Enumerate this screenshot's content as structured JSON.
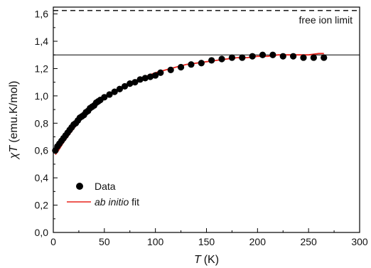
{
  "chart_data": {
    "type": "scatter",
    "xlabel_symbol": "T",
    "xlabel_unit": "(K)",
    "ylabel_symbol": "χT",
    "ylabel_unit": "(emu.K/mol)",
    "xlim": [
      0,
      300
    ],
    "ylim": [
      0.0,
      1.65
    ],
    "x_ticks": [
      0,
      50,
      100,
      150,
      200,
      250,
      300
    ],
    "y_ticks": [
      0.0,
      0.2,
      0.4,
      0.6,
      0.8,
      1.0,
      1.2,
      1.4,
      1.6
    ],
    "x_tick_labels": [
      "0",
      "50",
      "100",
      "150",
      "200",
      "250",
      "300"
    ],
    "y_tick_labels": [
      "0,0",
      "0,2",
      "0,4",
      "0,6",
      "0,8",
      "1,0",
      "1,2",
      "1,4",
      "1,6"
    ],
    "grid": false,
    "legend_position": "bottom-left",
    "legend": {
      "data_label": "Data",
      "fit_label_italic": "ab initio",
      "fit_label_rest": " fit"
    },
    "reference_lines": {
      "free_ion_limit": {
        "y": 1.625,
        "style": "dashed",
        "label": "free ion limit"
      },
      "saturation": {
        "y": 1.3,
        "style": "solid"
      }
    },
    "data_series": {
      "name": "Data",
      "color": "#000000",
      "x": [
        2,
        4,
        6,
        8,
        10,
        12,
        14,
        16,
        18,
        20,
        22,
        24,
        26,
        28,
        30,
        32,
        34,
        36,
        38,
        40,
        42,
        44,
        46,
        50,
        55,
        60,
        65,
        70,
        75,
        80,
        85,
        90,
        95,
        100,
        105,
        115,
        125,
        135,
        145,
        155,
        165,
        175,
        185,
        195,
        205,
        215,
        225,
        235,
        245,
        255,
        265
      ],
      "y": [
        0.6,
        0.63,
        0.65,
        0.67,
        0.69,
        0.71,
        0.73,
        0.75,
        0.77,
        0.79,
        0.8,
        0.82,
        0.84,
        0.85,
        0.86,
        0.88,
        0.89,
        0.91,
        0.92,
        0.93,
        0.95,
        0.96,
        0.97,
        0.99,
        1.01,
        1.03,
        1.05,
        1.07,
        1.09,
        1.1,
        1.12,
        1.13,
        1.14,
        1.15,
        1.17,
        1.19,
        1.21,
        1.23,
        1.24,
        1.26,
        1.27,
        1.28,
        1.28,
        1.29,
        1.3,
        1.3,
        1.29,
        1.29,
        1.28,
        1.28,
        1.28
      ]
    },
    "fit_series": {
      "name": "ab initio fit",
      "color": "#e8241c",
      "x": [
        2,
        5,
        10,
        15,
        20,
        25,
        30,
        35,
        40,
        45,
        50,
        60,
        70,
        80,
        90,
        100,
        110,
        120,
        130,
        140,
        150,
        160,
        170,
        180,
        190,
        200,
        210,
        220,
        230,
        240,
        250,
        260,
        265
      ],
      "y": [
        0.57,
        0.6,
        0.66,
        0.71,
        0.76,
        0.81,
        0.85,
        0.89,
        0.92,
        0.95,
        0.98,
        1.03,
        1.07,
        1.11,
        1.14,
        1.17,
        1.19,
        1.21,
        1.23,
        1.24,
        1.25,
        1.26,
        1.27,
        1.28,
        1.28,
        1.29,
        1.29,
        1.3,
        1.3,
        1.3,
        1.3,
        1.31,
        1.31
      ]
    }
  }
}
